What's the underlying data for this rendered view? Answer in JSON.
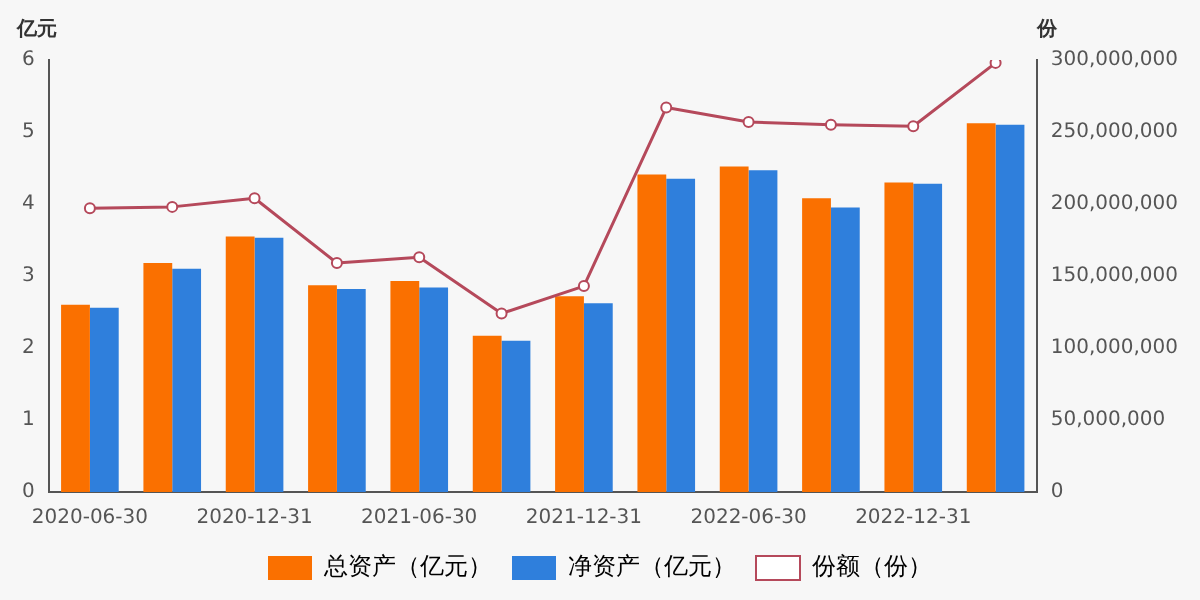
{
  "chart_data": {
    "type": "bar",
    "ylabel": "亿元",
    "y2label": "份",
    "categories": [
      "2020-06-30",
      null,
      "2020-12-31",
      null,
      "2021-06-30",
      null,
      "2021-12-31",
      null,
      "2022-06-30",
      null,
      "2022-12-31",
      null
    ],
    "series": [
      {
        "name": "总资产（亿元）",
        "color": "#fa7000",
        "values": [
          2.6,
          3.18,
          3.55,
          2.87,
          2.93,
          2.17,
          2.72,
          4.41,
          4.52,
          4.08,
          4.3,
          5.12
        ]
      },
      {
        "name": "净资产（亿元）",
        "color": "#2f7fdc",
        "values": [
          2.56,
          3.1,
          3.53,
          2.82,
          2.84,
          2.1,
          2.62,
          4.35,
          4.47,
          3.95,
          4.28,
          5.1
        ]
      },
      {
        "name": "份额（份）",
        "type": "line",
        "axis": "y2",
        "color": "#b5495b",
        "values": [
          197000000,
          198000000,
          204000000,
          159000000,
          163000000,
          124000000,
          143000000,
          267000000,
          257000000,
          255000000,
          254000000,
          298000000
        ]
      }
    ],
    "ylim": [
      0,
      6
    ],
    "yticks": [
      0,
      1,
      2,
      3,
      4,
      5,
      6
    ],
    "y2lim": [
      0,
      300000000
    ],
    "y2ticks": [
      {
        "value": 0,
        "label": "0"
      },
      {
        "value": 50000000,
        "label": "50,000,000"
      },
      {
        "value": 100000000,
        "label": "100,000,000"
      },
      {
        "value": 150000000,
        "label": "150,000,000"
      },
      {
        "value": 200000000,
        "label": "200,000,000"
      },
      {
        "value": 250000000,
        "label": "250,000,000"
      },
      {
        "value": 300000000,
        "label": "300,000,000"
      }
    ],
    "grid": false,
    "legend": "bottom",
    "marker": "circle"
  }
}
